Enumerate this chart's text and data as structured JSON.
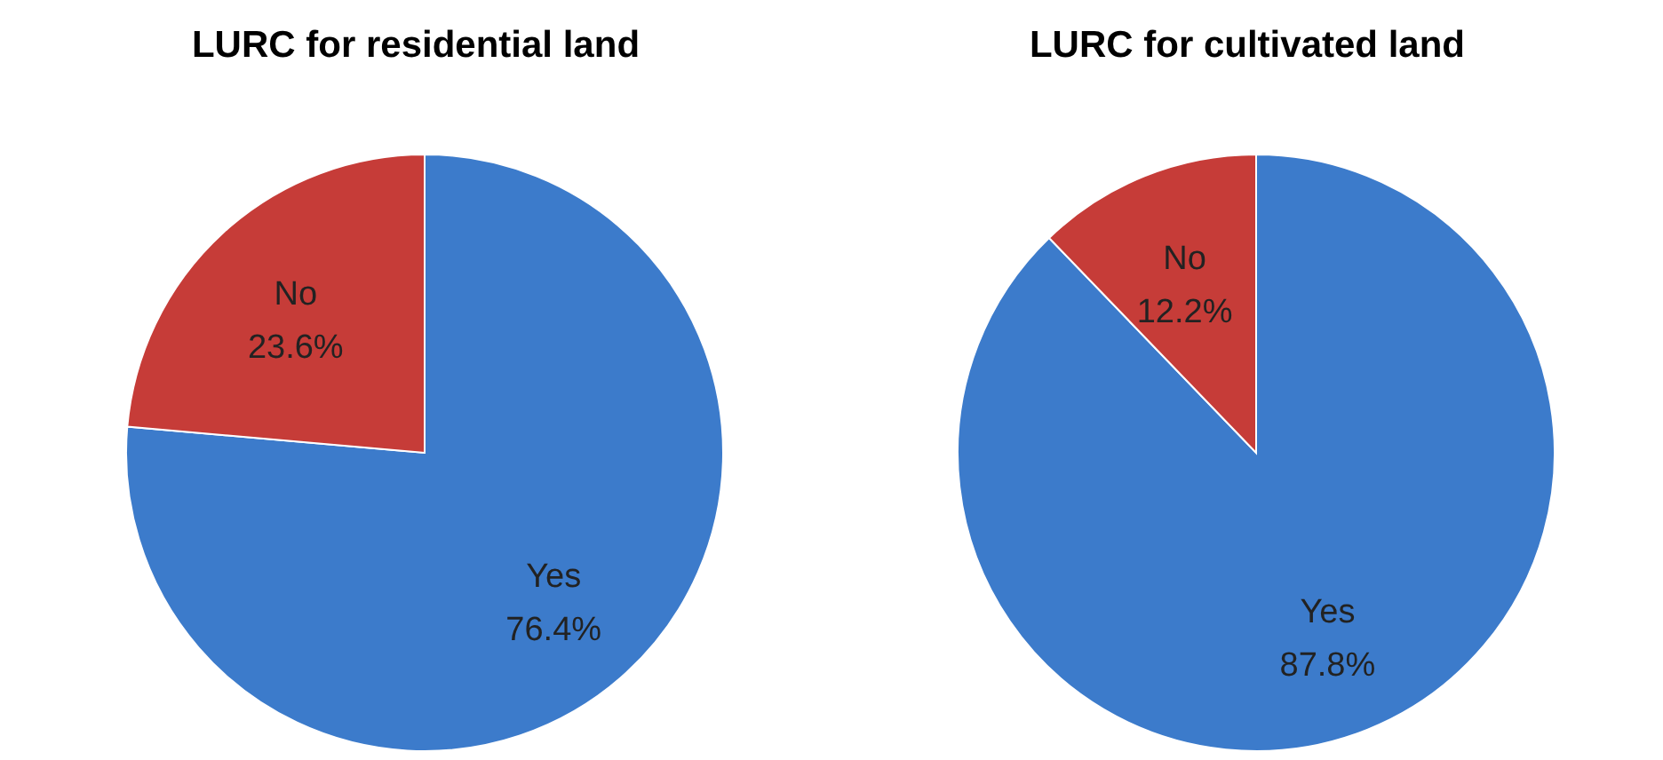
{
  "chart_data": [
    {
      "type": "pie",
      "title": "LURC for residential land",
      "categories": [
        "Yes",
        "No"
      ],
      "values": [
        76.4,
        23.6
      ],
      "value_labels": [
        "76.4%",
        "23.6%"
      ],
      "colors": [
        "#3c7bcb",
        "#c63c38"
      ],
      "legend": false
    },
    {
      "type": "pie",
      "title": "LURC for cultivated land",
      "categories": [
        "Yes",
        "No"
      ],
      "values": [
        87.8,
        12.2
      ],
      "value_labels": [
        "87.8%",
        "12.2%"
      ],
      "colors": [
        "#3c7bcb",
        "#c63c38"
      ],
      "legend": false
    }
  ]
}
